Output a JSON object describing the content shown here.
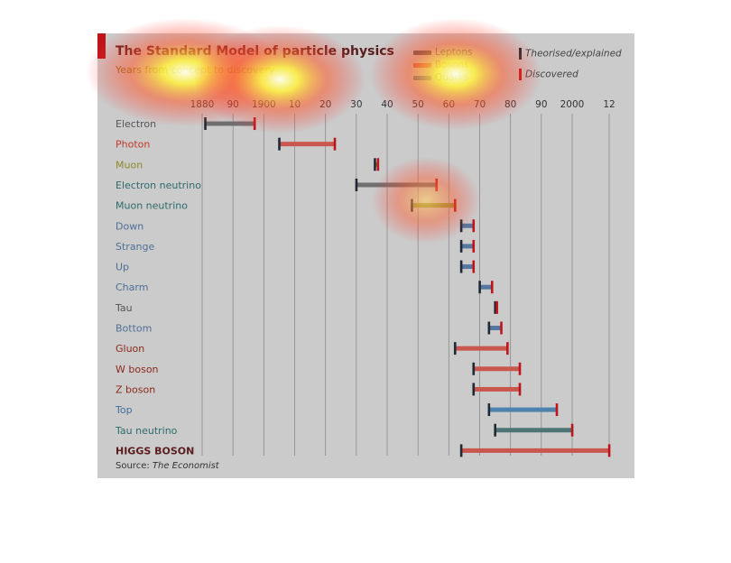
{
  "title": "The Standard Model of particle physics",
  "subtitle": "Years from concept to discovery",
  "source_label": "Source:",
  "source_name": "The Economist",
  "legend": {
    "categories": [
      {
        "label": "Leptons",
        "color": "#4e5a5a"
      },
      {
        "label": "Bosons",
        "color": "#c9574e"
      },
      {
        "label": "Quarks",
        "color": "#5577a0"
      }
    ],
    "markers": [
      {
        "label": "Theorised/explained",
        "color": "#1f2a36"
      },
      {
        "label": "Discovered",
        "color": "#c0141b"
      }
    ]
  },
  "colors": {
    "panel_bg": "#cbcbcb",
    "accent": "#c0141b",
    "start_tick": "#1f2a36",
    "end_tick": "#c0141b",
    "gridline": "#8a8a8a"
  },
  "chart_data": {
    "type": "range-bar",
    "title": "The Standard Model of particle physics",
    "subtitle": "Years from concept to discovery",
    "x_tick_labels": [
      "1880",
      "90",
      "1900",
      "10",
      "20",
      "30",
      "40",
      "50",
      "60",
      "70",
      "80",
      "90",
      "2000",
      "12"
    ],
    "x_tick_years": [
      1880,
      1890,
      1900,
      1910,
      1920,
      1930,
      1940,
      1950,
      1960,
      1970,
      1980,
      1990,
      2000,
      2012
    ],
    "xlim": [
      1880,
      2012
    ],
    "grid": true,
    "series": [
      {
        "name": "Electron",
        "group": "Leptons",
        "label_color": "#55555a",
        "bar_color": "#6f6f72",
        "start": 1881,
        "end": 1897
      },
      {
        "name": "Photon",
        "group": "Bosons",
        "label_color": "#c0392b",
        "bar_color": "#c9574e",
        "start": 1905,
        "end": 1923
      },
      {
        "name": "Muon",
        "group": "Leptons",
        "label_color": "#8a8a2a",
        "bar_color": "#8a8a2a",
        "start": 1936,
        "end": 1937
      },
      {
        "name": "Electron neutrino",
        "group": "Leptons",
        "label_color": "#2f6b6b",
        "bar_color": "#707070",
        "start": 1930,
        "end": 1956
      },
      {
        "name": "Muon neutrino",
        "group": "Leptons",
        "label_color": "#2f6b6b",
        "bar_color": "#8a9a3a",
        "start": 1948,
        "end": 1962
      },
      {
        "name": "Down",
        "group": "Quarks",
        "label_color": "#4f6f97",
        "bar_color": "#5577a0",
        "start": 1964,
        "end": 1968
      },
      {
        "name": "Strange",
        "group": "Quarks",
        "label_color": "#4f6f97",
        "bar_color": "#5577a0",
        "start": 1964,
        "end": 1968
      },
      {
        "name": "Up",
        "group": "Quarks",
        "label_color": "#4f6f97",
        "bar_color": "#5577a0",
        "start": 1964,
        "end": 1968
      },
      {
        "name": "Charm",
        "group": "Quarks",
        "label_color": "#4f6f97",
        "bar_color": "#5577a0",
        "start": 1970,
        "end": 1974
      },
      {
        "name": "Tau",
        "group": "Leptons",
        "label_color": "#55555a",
        "bar_color": "#6f6f72",
        "start": 1975,
        "end": 1975
      },
      {
        "name": "Bottom",
        "group": "Quarks",
        "label_color": "#4f6f97",
        "bar_color": "#5577a0",
        "start": 1973,
        "end": 1977
      },
      {
        "name": "Gluon",
        "group": "Bosons",
        "label_color": "#8a2a1a",
        "bar_color": "#c9574e",
        "start": 1962,
        "end": 1979
      },
      {
        "name": "W boson",
        "group": "Bosons",
        "label_color": "#8a2a1a",
        "bar_color": "#c9574e",
        "start": 1968,
        "end": 1983
      },
      {
        "name": "Z boson",
        "group": "Bosons",
        "label_color": "#8a2a1a",
        "bar_color": "#c9574e",
        "start": 1968,
        "end": 1983
      },
      {
        "name": "Top",
        "group": "Quarks",
        "label_color": "#3f6f9a",
        "bar_color": "#4f82ad",
        "start": 1973,
        "end": 1995
      },
      {
        "name": "Tau neutrino",
        "group": "Leptons",
        "label_color": "#2f6b6b",
        "bar_color": "#4f7476",
        "start": 1975,
        "end": 2000
      },
      {
        "name": "HIGGS BOSON",
        "group": "Bosons",
        "label_color": "#5a1c1c",
        "bar_color": "#c9574e",
        "start": 1964,
        "end": 2012
      }
    ]
  }
}
